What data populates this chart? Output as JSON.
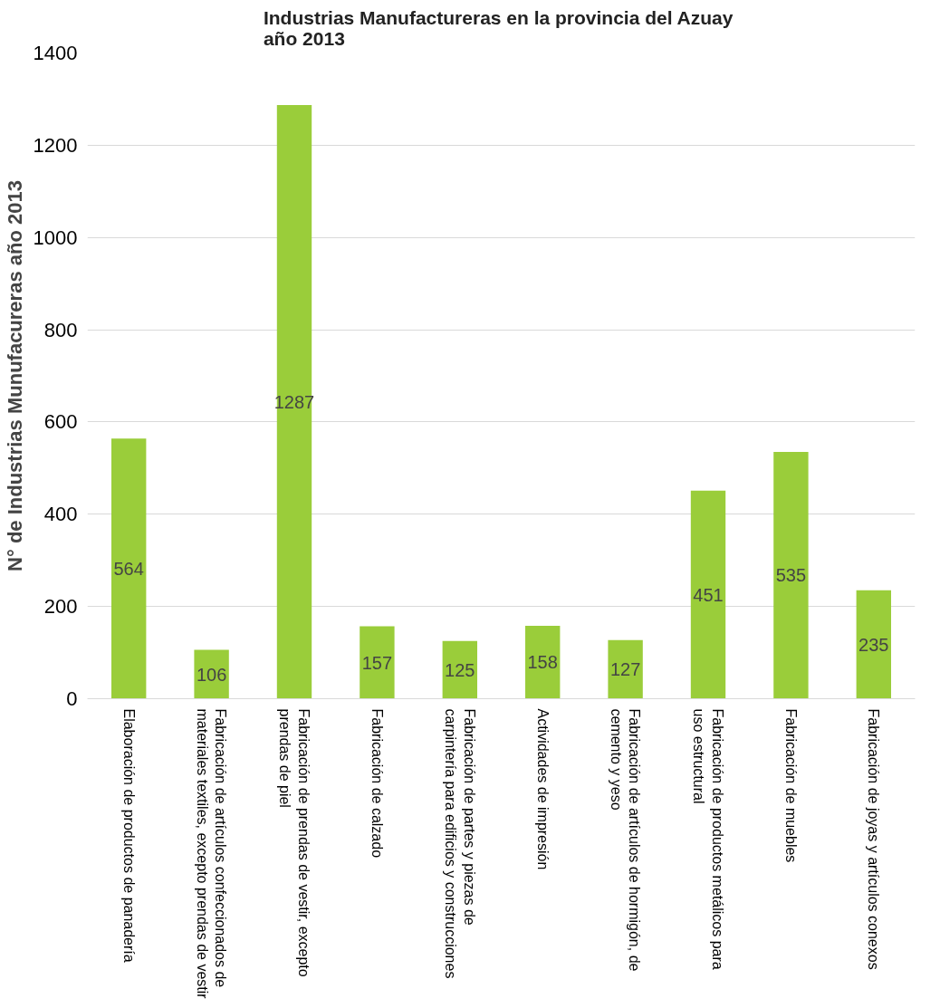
{
  "chart_data": {
    "type": "bar",
    "title": "Industrias Manufactureras en  la provincia del Azuay\naño 2013",
    "ylabel": "N° de Industrias Munufacureras año 2013",
    "categories": [
      "Elaboración de productos de panadería",
      "Fabricación de artículos confeccionados de\nmateriales textiles, excepto prendas de vestir",
      "Fabricación de prendas de vestir, excepto\nprendas de piel",
      "Fabricación de calzado",
      "Fabricación de partes y piezas de\ncarpintería para edificios y construcciones",
      "Actividades de impresión",
      "Fabricación de artículos de hormigón, de\ncemento y yeso",
      "Fabricación de productos metálicos para\nuso estructural",
      "Fabricación de muebles",
      "Fabricación de joyas y artículos conexos"
    ],
    "values": [
      564,
      106,
      1287,
      157,
      125,
      158,
      127,
      451,
      535,
      235
    ],
    "color": "#9acd3a",
    "ylim": [
      0,
      1400
    ],
    "yticks": [
      0,
      200,
      400,
      600,
      800,
      1000,
      1200,
      1400
    ],
    "grid": "y",
    "data_labels": true
  }
}
